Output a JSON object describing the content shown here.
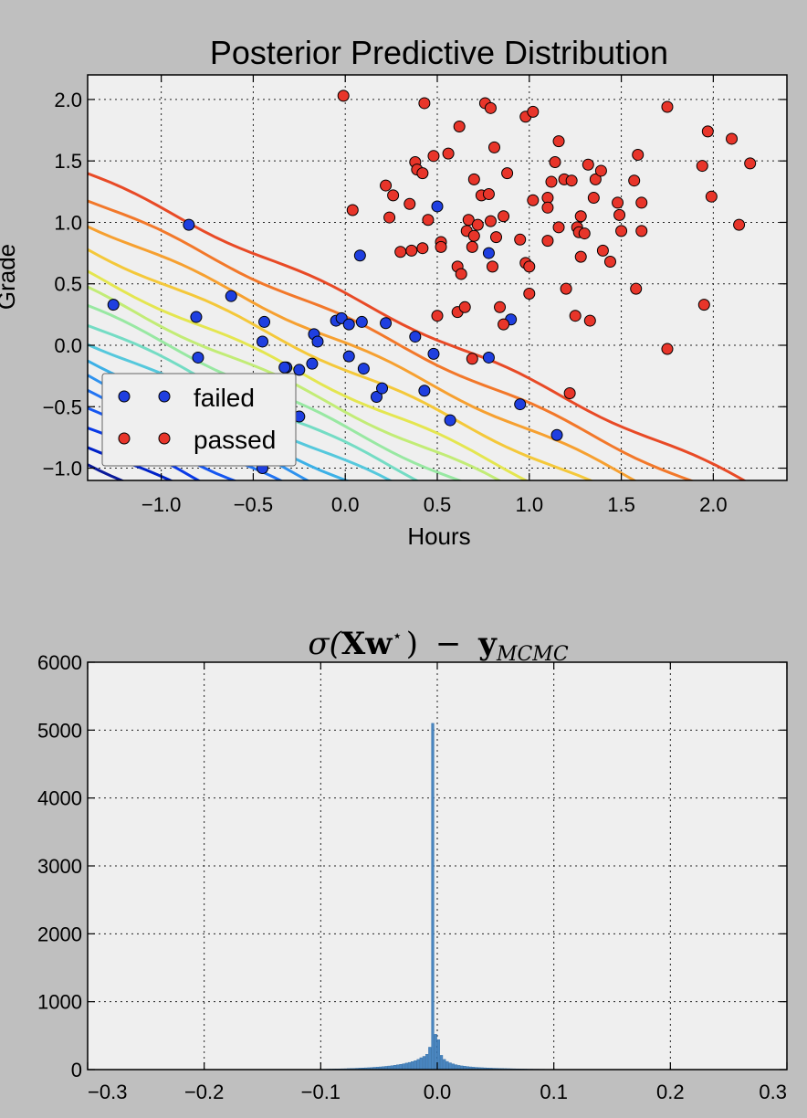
{
  "chart_data": [
    {
      "type": "scatter",
      "title": "Posterior Predictive Distribution",
      "xlabel": "Hours",
      "ylabel": "Grade",
      "xlim": [
        -1.4,
        2.4
      ],
      "ylim": [
        -1.1,
        2.2
      ],
      "x_ticks": [
        "−1.0",
        "−0.5",
        "0.0",
        "0.5",
        "1.0",
        "1.5",
        "2.0"
      ],
      "y_ticks": [
        "2.0",
        "1.5",
        "1.0",
        "0.5",
        "0.0",
        "−0.5",
        "−1.0"
      ],
      "grid": true,
      "legend_position": "lower-left",
      "contours": {
        "description": "Predictive probability contour lines",
        "colormap": "jet",
        "levels": 16
      },
      "series": [
        {
          "name": "failed",
          "color": "#1f3fe0",
          "points": [
            [
              -1.26,
              0.33
            ],
            [
              -0.85,
              0.98
            ],
            [
              -0.81,
              0.23
            ],
            [
              -0.8,
              -0.1
            ],
            [
              -0.62,
              0.4
            ],
            [
              -0.44,
              0.19
            ],
            [
              -0.45,
              0.03
            ],
            [
              -0.45,
              -1.0
            ],
            [
              -0.32,
              -0.18
            ],
            [
              -0.33,
              -0.18
            ],
            [
              -0.25,
              -0.58
            ],
            [
              -0.25,
              -0.2
            ],
            [
              -0.18,
              -0.15
            ],
            [
              -0.17,
              0.09
            ],
            [
              -0.15,
              0.03
            ],
            [
              -0.05,
              0.2
            ],
            [
              -0.02,
              0.22
            ],
            [
              0.02,
              -0.09
            ],
            [
              0.02,
              0.17
            ],
            [
              0.08,
              0.73
            ],
            [
              0.09,
              0.19
            ],
            [
              0.1,
              -0.19
            ],
            [
              0.17,
              -0.42
            ],
            [
              0.2,
              -0.35
            ],
            [
              0.22,
              0.18
            ],
            [
              0.38,
              0.07
            ],
            [
              0.43,
              -0.37
            ],
            [
              0.48,
              -0.07
            ],
            [
              0.5,
              1.13
            ],
            [
              0.57,
              -0.61
            ],
            [
              0.78,
              -0.1
            ],
            [
              0.78,
              0.75
            ],
            [
              0.9,
              0.21
            ],
            [
              0.95,
              -0.48
            ],
            [
              1.15,
              -0.73
            ]
          ]
        },
        {
          "name": "passed",
          "color": "#e8352a",
          "points": [
            [
              -0.01,
              2.03
            ],
            [
              0.04,
              1.1
            ],
            [
              0.22,
              1.3
            ],
            [
              0.24,
              1.04
            ],
            [
              0.26,
              1.22
            ],
            [
              0.3,
              0.76
            ],
            [
              0.36,
              0.77
            ],
            [
              0.35,
              1.15
            ],
            [
              0.38,
              1.49
            ],
            [
              0.39,
              1.43
            ],
            [
              0.42,
              1.4
            ],
            [
              0.42,
              0.79
            ],
            [
              0.43,
              1.97
            ],
            [
              0.45,
              1.02
            ],
            [
              0.48,
              1.54
            ],
            [
              0.5,
              0.24
            ],
            [
              0.52,
              0.84
            ],
            [
              0.52,
              0.8
            ],
            [
              0.56,
              1.56
            ],
            [
              0.61,
              0.64
            ],
            [
              0.61,
              0.27
            ],
            [
              0.62,
              1.78
            ],
            [
              0.63,
              0.58
            ],
            [
              0.65,
              0.31
            ],
            [
              0.66,
              0.93
            ],
            [
              0.67,
              1.02
            ],
            [
              0.69,
              0.8
            ],
            [
              0.69,
              -0.11
            ],
            [
              0.7,
              1.35
            ],
            [
              0.7,
              0.89
            ],
            [
              0.72,
              0.98
            ],
            [
              0.74,
              1.22
            ],
            [
              0.76,
              1.97
            ],
            [
              0.78,
              1.23
            ],
            [
              0.79,
              1.01
            ],
            [
              0.79,
              1.93
            ],
            [
              0.8,
              0.64
            ],
            [
              0.81,
              1.61
            ],
            [
              0.82,
              0.88
            ],
            [
              0.84,
              0.31
            ],
            [
              0.86,
              1.05
            ],
            [
              0.86,
              0.17
            ],
            [
              0.88,
              1.4
            ],
            [
              0.95,
              0.86
            ],
            [
              0.98,
              0.67
            ],
            [
              0.98,
              1.86
            ],
            [
              1.0,
              0.64
            ],
            [
              1.0,
              0.42
            ],
            [
              1.02,
              1.18
            ],
            [
              1.02,
              1.9
            ],
            [
              1.1,
              1.2
            ],
            [
              1.1,
              0.85
            ],
            [
              1.1,
              1.12
            ],
            [
              1.12,
              1.33
            ],
            [
              1.14,
              1.49
            ],
            [
              1.16,
              0.96
            ],
            [
              1.16,
              1.66
            ],
            [
              1.19,
              1.35
            ],
            [
              1.2,
              0.46
            ],
            [
              1.22,
              -0.39
            ],
            [
              1.23,
              1.34
            ],
            [
              1.25,
              0.24
            ],
            [
              1.26,
              0.96
            ],
            [
              1.27,
              0.92
            ],
            [
              1.28,
              1.05
            ],
            [
              1.28,
              0.72
            ],
            [
              1.3,
              0.91
            ],
            [
              1.32,
              1.47
            ],
            [
              1.33,
              0.2
            ],
            [
              1.35,
              1.2
            ],
            [
              1.36,
              1.35
            ],
            [
              1.39,
              1.42
            ],
            [
              1.4,
              0.77
            ],
            [
              1.44,
              0.68
            ],
            [
              1.48,
              1.16
            ],
            [
              1.49,
              1.06
            ],
            [
              1.5,
              0.93
            ],
            [
              1.57,
              1.34
            ],
            [
              1.58,
              0.46
            ],
            [
              1.59,
              1.55
            ],
            [
              1.61,
              1.16
            ],
            [
              1.61,
              0.93
            ],
            [
              1.75,
              -0.03
            ],
            [
              1.75,
              1.94
            ],
            [
              1.94,
              1.46
            ],
            [
              1.95,
              0.33
            ],
            [
              1.97,
              1.74
            ],
            [
              1.99,
              1.21
            ],
            [
              2.1,
              1.68
            ],
            [
              2.14,
              0.98
            ],
            [
              2.2,
              1.48
            ]
          ]
        }
      ]
    },
    {
      "type": "bar",
      "title": "σ(Xw*) − y_MCMC",
      "title_parts": {
        "sigma": "σ(",
        "X": "X",
        "w": "w",
        "star": "⋆",
        "close": ")",
        "minus": "−",
        "y": "y",
        "sub": "MCMC"
      },
      "xlim": [
        -0.3,
        0.3
      ],
      "ylim": [
        0,
        6000
      ],
      "x_ticks": [
        "−0.3",
        "−0.2",
        "−0.1",
        "0.0",
        "0.1",
        "0.2",
        "0.3"
      ],
      "y_ticks": [
        "6000",
        "5000",
        "4000",
        "3000",
        "2000",
        "1000",
        "0"
      ],
      "grid": true,
      "bar_color": "#4a86c0",
      "bin_width": 0.0025,
      "bins": [
        [
          -0.1,
          5
        ],
        [
          -0.0975,
          6
        ],
        [
          -0.095,
          7
        ],
        [
          -0.0925,
          8
        ],
        [
          -0.09,
          9
        ],
        [
          -0.0875,
          10
        ],
        [
          -0.085,
          11
        ],
        [
          -0.0825,
          12
        ],
        [
          -0.08,
          13
        ],
        [
          -0.0775,
          15
        ],
        [
          -0.075,
          16
        ],
        [
          -0.0725,
          18
        ],
        [
          -0.07,
          20
        ],
        [
          -0.0675,
          22
        ],
        [
          -0.065,
          24
        ],
        [
          -0.0625,
          26
        ],
        [
          -0.06,
          28
        ],
        [
          -0.0575,
          31
        ],
        [
          -0.055,
          34
        ],
        [
          -0.0525,
          37
        ],
        [
          -0.05,
          40
        ],
        [
          -0.0475,
          44
        ],
        [
          -0.045,
          48
        ],
        [
          -0.0425,
          53
        ],
        [
          -0.04,
          58
        ],
        [
          -0.0375,
          64
        ],
        [
          -0.035,
          71
        ],
        [
          -0.0325,
          78
        ],
        [
          -0.03,
          86
        ],
        [
          -0.0275,
          96
        ],
        [
          -0.025,
          106
        ],
        [
          -0.0225,
          118
        ],
        [
          -0.02,
          132
        ],
        [
          -0.0175,
          150
        ],
        [
          -0.015,
          175
        ],
        [
          -0.0125,
          195
        ],
        [
          -0.01,
          225
        ],
        [
          -0.0075,
          330
        ],
        [
          -0.005,
          5100
        ],
        [
          -0.0025,
          520
        ],
        [
          0.0,
          440
        ],
        [
          0.0025,
          210
        ],
        [
          0.005,
          150
        ],
        [
          0.0075,
          120
        ],
        [
          0.01,
          100
        ],
        [
          0.0125,
          85
        ],
        [
          0.015,
          72
        ],
        [
          0.0175,
          62
        ],
        [
          0.02,
          55
        ],
        [
          0.0225,
          50
        ],
        [
          0.025,
          45
        ],
        [
          0.0275,
          40
        ],
        [
          0.03,
          36
        ],
        [
          0.0325,
          33
        ],
        [
          0.035,
          30
        ],
        [
          0.0375,
          28
        ],
        [
          0.04,
          26
        ],
        [
          0.0425,
          24
        ],
        [
          0.045,
          22
        ],
        [
          0.0475,
          20
        ],
        [
          0.05,
          19
        ],
        [
          0.0525,
          17
        ],
        [
          0.055,
          16
        ],
        [
          0.0575,
          15
        ],
        [
          0.06,
          14
        ],
        [
          0.0625,
          13
        ],
        [
          0.065,
          12
        ],
        [
          0.0675,
          11
        ],
        [
          0.07,
          10
        ],
        [
          0.0725,
          9
        ],
        [
          0.075,
          8
        ],
        [
          0.0775,
          7
        ],
        [
          0.08,
          7
        ],
        [
          0.0825,
          6
        ],
        [
          0.085,
          6
        ],
        [
          0.0875,
          5
        ],
        [
          0.09,
          5
        ],
        [
          0.0925,
          4
        ],
        [
          0.095,
          4
        ],
        [
          0.0975,
          3
        ],
        [
          0.1,
          3
        ],
        [
          0.1025,
          3
        ],
        [
          0.105,
          2
        ],
        [
          0.1075,
          2
        ],
        [
          0.11,
          2
        ],
        [
          0.1125,
          2
        ],
        [
          0.115,
          1
        ],
        [
          0.1175,
          1
        ],
        [
          0.12,
          1
        ]
      ]
    }
  ]
}
